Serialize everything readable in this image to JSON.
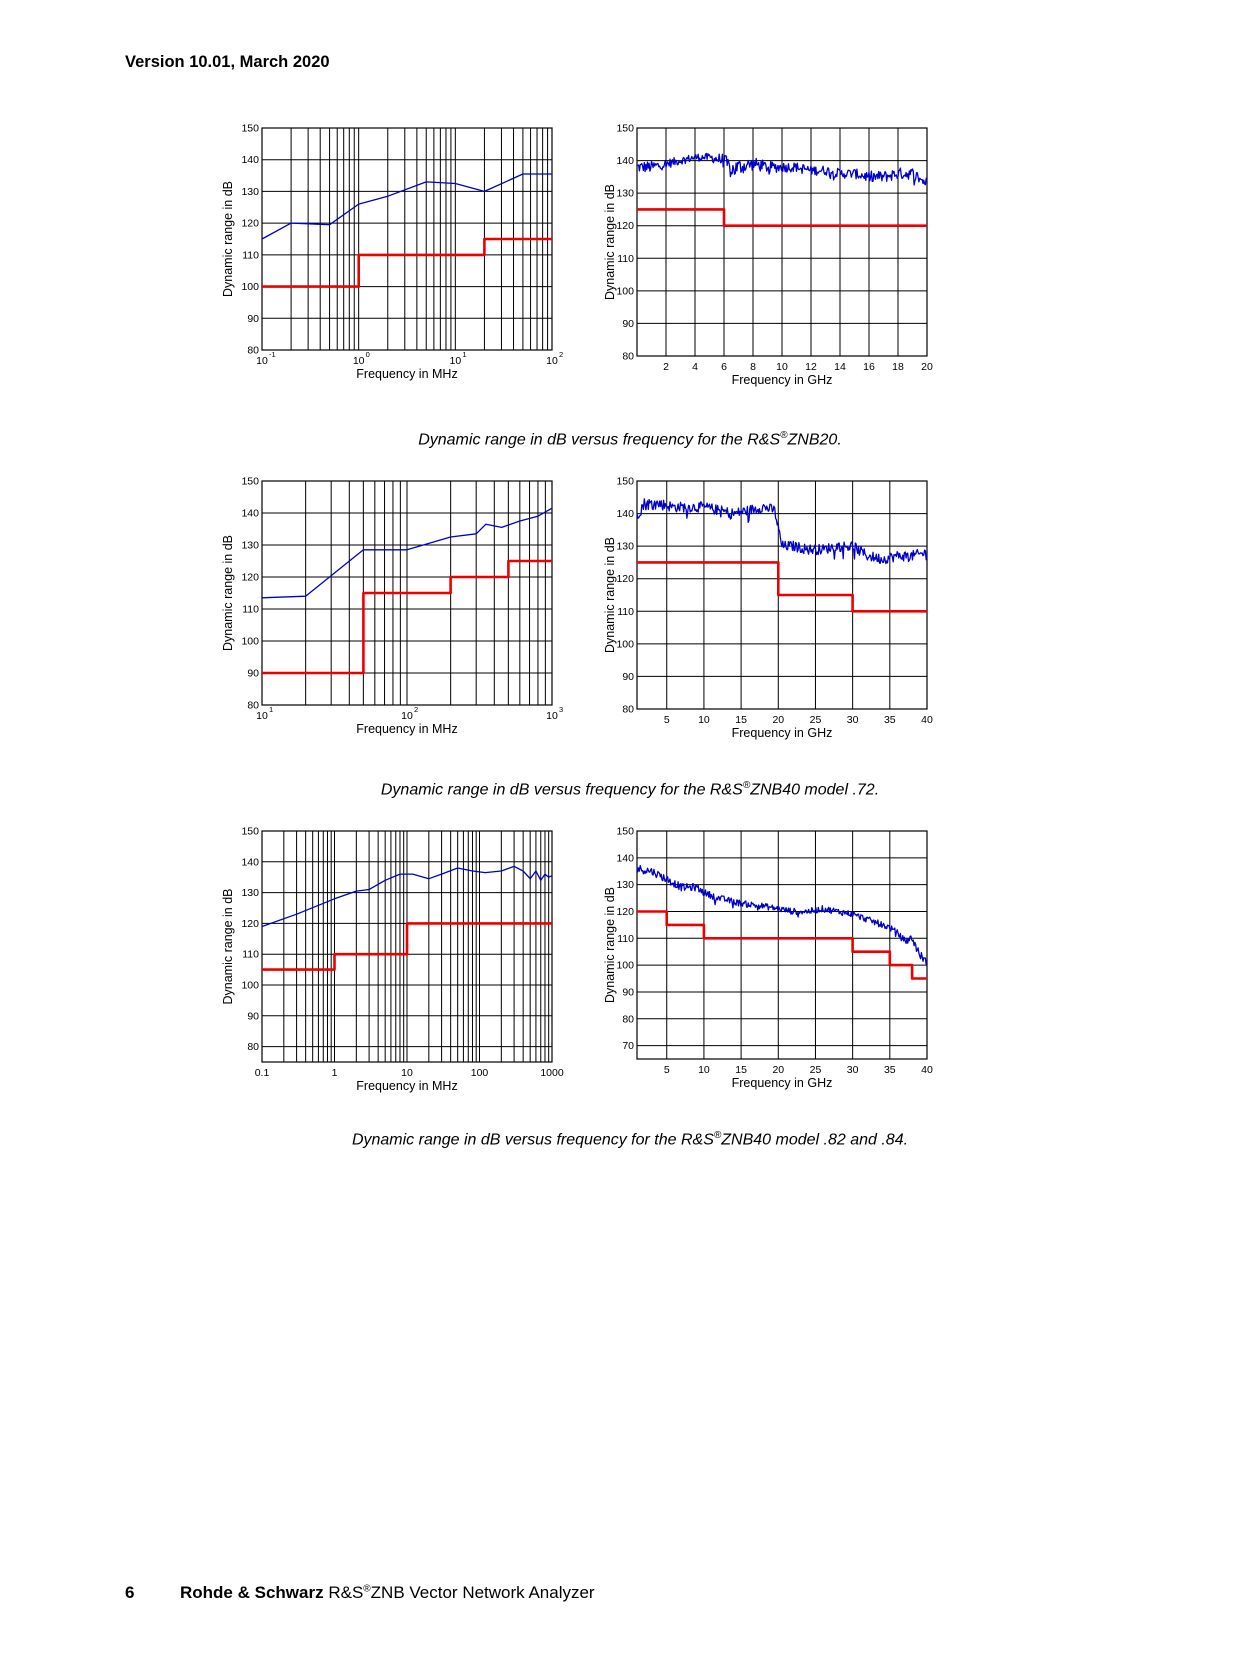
{
  "header": {
    "version": "Version 10.01, March 2020"
  },
  "footer": {
    "page_number": "6",
    "brand": "Rohde & Schwarz",
    "product_prefix": "R&S",
    "product_suffix": "ZNB Vector Network Analyzer"
  },
  "captions": [
    {
      "pre": "Dynamic range in dB versus frequency for the R&S",
      "post": "ZNB20."
    },
    {
      "pre": "Dynamic range in dB versus frequency for the R&S",
      "post": "ZNB40 model .72."
    },
    {
      "pre": "Dynamic range in dB versus frequency for the R&S",
      "post": "ZNB40 model .82 and .84."
    }
  ],
  "colors": {
    "measured": "#0000cc",
    "spec": "#ee0000",
    "grid": "#000000"
  },
  "chart_data": [
    {
      "type": "line",
      "xlabel": "Frequency in MHz",
      "ylabel": "Dynamic range in dB",
      "xscale": "log",
      "xlim": [
        0.1,
        100
      ],
      "ylim": [
        80,
        150
      ],
      "xtick_format": "power",
      "xticks": [
        {
          "value": 0.1,
          "base": "10",
          "exp": "-1"
        },
        {
          "value": 1,
          "base": "10",
          "exp": "0"
        },
        {
          "value": 10,
          "base": "10",
          "exp": "1"
        },
        {
          "value": 100,
          "base": "10",
          "exp": "2"
        }
      ],
      "yticks": [
        80,
        90,
        100,
        110,
        120,
        130,
        140,
        150
      ],
      "series": [
        {
          "role": "measured",
          "x": [
            0.1,
            0.2,
            0.5,
            1,
            2,
            5,
            10,
            20,
            50,
            100
          ],
          "y": [
            115,
            120,
            119.5,
            126,
            128.5,
            133,
            132.5,
            130,
            135.5,
            135.5
          ]
        },
        {
          "role": "spec",
          "step": true,
          "x": [
            0.1,
            1,
            20,
            100
          ],
          "y": [
            100,
            110,
            115,
            115
          ]
        }
      ]
    },
    {
      "type": "line",
      "xlabel": "Frequency in GHz",
      "ylabel": "Dynamic range in dB",
      "xscale": "linear",
      "xlim": [
        0,
        20
      ],
      "ylim": [
        80,
        150
      ],
      "xticks": [
        {
          "value": 2,
          "label": "2"
        },
        {
          "value": 4,
          "label": "4"
        },
        {
          "value": 6,
          "label": "6"
        },
        {
          "value": 8,
          "label": "8"
        },
        {
          "value": 10,
          "label": "10"
        },
        {
          "value": 12,
          "label": "12"
        },
        {
          "value": 14,
          "label": "14"
        },
        {
          "value": 16,
          "label": "16"
        },
        {
          "value": 18,
          "label": "18"
        },
        {
          "value": 20,
          "label": "20"
        }
      ],
      "yticks": [
        80,
        90,
        100,
        110,
        120,
        130,
        140,
        150
      ],
      "series": [
        {
          "role": "measured",
          "noisy": true,
          "x": [
            0,
            1,
            2,
            3,
            4,
            5,
            6,
            6.5,
            7,
            8,
            9,
            10,
            11,
            12,
            13,
            14,
            15,
            16,
            17,
            18,
            19,
            20
          ],
          "y": [
            138,
            138,
            139,
            140,
            141,
            141,
            140,
            137,
            138,
            139,
            138,
            138,
            138,
            137,
            137,
            136,
            136,
            135,
            135,
            136,
            136,
            133
          ],
          "noise": [
            1.8,
            1.8,
            1.5,
            1.2,
            1.2,
            1.2,
            2.2,
            2.8,
            2.6,
            2.0,
            1.8,
            1.6,
            1.5,
            1.5,
            1.5,
            1.5,
            1.5,
            1.8,
            1.8,
            1.8,
            1.8,
            1.8
          ]
        },
        {
          "role": "spec",
          "step": true,
          "x": [
            0,
            6,
            20
          ],
          "y": [
            125,
            120,
            120
          ]
        }
      ]
    },
    {
      "type": "line",
      "xlabel": "Frequency in MHz",
      "ylabel": "Dynamic range in dB",
      "xscale": "log",
      "xlim": [
        10,
        1000
      ],
      "ylim": [
        80,
        150
      ],
      "xtick_format": "power",
      "xticks": [
        {
          "value": 10,
          "base": "10",
          "exp": "1"
        },
        {
          "value": 100,
          "base": "10",
          "exp": "2"
        },
        {
          "value": 1000,
          "base": "10",
          "exp": "3"
        }
      ],
      "yticks": [
        80,
        90,
        100,
        110,
        120,
        130,
        140,
        150
      ],
      "series": [
        {
          "role": "measured",
          "x": [
            10,
            20,
            50,
            100,
            200,
            300,
            350,
            450,
            600,
            800,
            1000
          ],
          "y": [
            113.5,
            114,
            128.5,
            128.5,
            132.5,
            133.5,
            136.5,
            135.5,
            137.5,
            139,
            141.5
          ]
        },
        {
          "role": "spec",
          "step": true,
          "x": [
            10,
            50,
            200,
            500,
            1000
          ],
          "y": [
            90,
            115,
            120,
            125,
            125
          ]
        }
      ]
    },
    {
      "type": "line",
      "xlabel": "Frequency in GHz",
      "ylabel": "Dynamic range in dB",
      "xscale": "linear",
      "xlim": [
        1,
        40
      ],
      "ylim": [
        80,
        150
      ],
      "xticks": [
        {
          "value": 5,
          "label": "5"
        },
        {
          "value": 10,
          "label": "10"
        },
        {
          "value": 15,
          "label": "15"
        },
        {
          "value": 20,
          "label": "20"
        },
        {
          "value": 25,
          "label": "25"
        },
        {
          "value": 30,
          "label": "30"
        },
        {
          "value": 35,
          "label": "35"
        },
        {
          "value": 40,
          "label": "40"
        }
      ],
      "yticks": [
        80,
        90,
        100,
        110,
        120,
        130,
        140,
        150
      ],
      "series": [
        {
          "role": "measured",
          "noisy": true,
          "x": [
            1,
            2,
            4,
            6,
            8,
            10,
            12,
            14,
            16,
            18,
            19.5,
            20.5,
            22,
            24,
            26,
            28,
            30,
            32,
            34,
            36,
            38,
            40
          ],
          "y": [
            140,
            143,
            143,
            142,
            142,
            142,
            141,
            140,
            141,
            142,
            141,
            130,
            130,
            129,
            129,
            130,
            130,
            127,
            126,
            127,
            127,
            128
          ],
          "noise": [
            2.2,
            2.0,
            1.8,
            1.6,
            1.6,
            1.6,
            1.6,
            1.6,
            1.6,
            1.6,
            1.6,
            1.6,
            1.6,
            1.6,
            1.6,
            1.6,
            1.8,
            1.6,
            1.6,
            1.6,
            1.6,
            1.6
          ]
        },
        {
          "role": "spec",
          "step": true,
          "x": [
            1,
            20,
            30,
            40
          ],
          "y": [
            125,
            115,
            110,
            110
          ]
        }
      ]
    },
    {
      "type": "line",
      "xlabel": "Frequency in MHz",
      "ylabel": "Dynamic range in dB",
      "xscale": "log",
      "xlim": [
        0.1,
        1000
      ],
      "ylim": [
        75,
        150
      ],
      "xtick_format": "plain",
      "xticks": [
        {
          "value": 0.1,
          "label": "0.1"
        },
        {
          "value": 1,
          "label": "1"
        },
        {
          "value": 10,
          "label": "10"
        },
        {
          "value": 100,
          "label": "100"
        },
        {
          "value": 1000,
          "label": "1000"
        }
      ],
      "yticks": [
        80,
        90,
        100,
        110,
        120,
        130,
        140,
        150
      ],
      "series": [
        {
          "role": "measured",
          "x": [
            0.1,
            0.3,
            1,
            2,
            3,
            5,
            8,
            12,
            20,
            30,
            50,
            80,
            120,
            200,
            300,
            400,
            500,
            600,
            700,
            800,
            900,
            1000
          ],
          "y": [
            119,
            123,
            128,
            130.5,
            131,
            134,
            136,
            136,
            134.5,
            136,
            138,
            137,
            136.5,
            137,
            138.5,
            137,
            134.5,
            137,
            134,
            136,
            135,
            135.5
          ]
        },
        {
          "role": "spec",
          "step": true,
          "x": [
            0.1,
            1,
            10,
            1000
          ],
          "y": [
            105,
            110,
            120,
            120
          ]
        }
      ]
    },
    {
      "type": "line",
      "xlabel": "Frequency in GHz",
      "ylabel": "Dynamic range in dB",
      "xscale": "linear",
      "xlim": [
        1,
        40
      ],
      "ylim": [
        65,
        150
      ],
      "xticks": [
        {
          "value": 5,
          "label": "5"
        },
        {
          "value": 10,
          "label": "10"
        },
        {
          "value": 15,
          "label": "15"
        },
        {
          "value": 20,
          "label": "20"
        },
        {
          "value": 25,
          "label": "25"
        },
        {
          "value": 30,
          "label": "30"
        },
        {
          "value": 35,
          "label": "35"
        },
        {
          "value": 40,
          "label": "40"
        }
      ],
      "yticks": [
        70,
        80,
        90,
        100,
        110,
        120,
        130,
        140,
        150
      ],
      "series": [
        {
          "role": "measured",
          "noisy": true,
          "x": [
            1,
            3,
            5,
            7,
            9,
            10,
            12,
            15,
            18,
            20,
            22,
            24,
            26,
            28,
            30,
            32,
            33,
            35,
            36,
            37,
            38,
            39,
            40
          ],
          "y": [
            136,
            135,
            132,
            129,
            129,
            127,
            125,
            123,
            122,
            121,
            120,
            120,
            121,
            120,
            119,
            117,
            116,
            114,
            112,
            109,
            110,
            104,
            101
          ],
          "noise": [
            1.6,
            1.5,
            1.5,
            1.4,
            1.4,
            1.3,
            1.2,
            1.2,
            1.2,
            1.2,
            1.2,
            1.2,
            1.2,
            1.2,
            1.2,
            1.2,
            1.2,
            1.2,
            1.2,
            1.4,
            1.5,
            1.6,
            1.2
          ]
        },
        {
          "role": "spec",
          "step": true,
          "x": [
            1,
            5,
            10,
            30,
            35,
            38,
            40
          ],
          "y": [
            120,
            115,
            110,
            105,
            100,
            95,
            95
          ]
        }
      ]
    }
  ]
}
